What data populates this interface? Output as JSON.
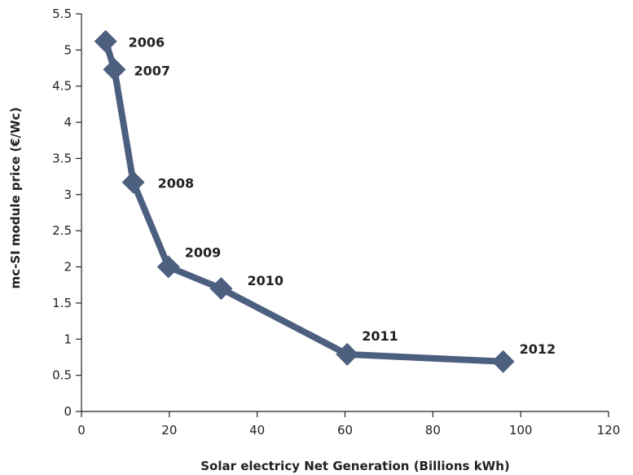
{
  "chart_data": {
    "type": "line",
    "xlabel": "Solar electricy Net Generation (Billions kWh)",
    "ylabel": "mc-SI module price (€/Wc)",
    "xlim": [
      0,
      120
    ],
    "ylim": [
      0,
      5.5
    ],
    "x_ticks": [
      0,
      20,
      40,
      60,
      80,
      100,
      120
    ],
    "y_ticks": [
      0,
      0.5,
      1,
      1.5,
      2,
      2.5,
      3,
      3.5,
      4,
      4.5,
      5,
      5.5
    ],
    "y_tick_labels": [
      "0",
      "0.5",
      "1",
      "1.5",
      "2",
      "2.5",
      "3",
      "3.5",
      "4",
      "4.5",
      "5",
      "5.5"
    ],
    "grid": false,
    "legend": "none",
    "series": [
      {
        "color": "#4d5f7f",
        "marker": "diamond",
        "points": [
          {
            "label": "2006",
            "x": 5.5,
            "y": 5.12
          },
          {
            "label": "2007",
            "x": 7.5,
            "y": 4.73
          },
          {
            "label": "2008",
            "x": 11.8,
            "y": 3.17
          },
          {
            "label": "2009",
            "x": 19.8,
            "y": 2.0
          },
          {
            "label": "2010",
            "x": 31.8,
            "y": 1.7
          },
          {
            "label": "2011",
            "x": 60.5,
            "y": 0.79
          },
          {
            "label": "2012",
            "x": 96,
            "y": 0.69
          }
        ]
      }
    ]
  }
}
